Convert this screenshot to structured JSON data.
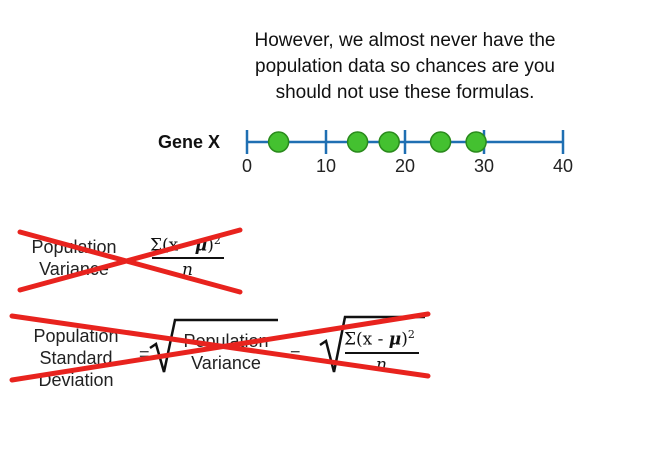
{
  "caption": {
    "line1": "However, we almost never have the",
    "line2": "population data so chances are you",
    "line3": "should not use these formulas."
  },
  "number_line": {
    "label": "Gene X",
    "ticks": [
      "0",
      "10",
      "20",
      "30",
      "40"
    ],
    "tick_values": [
      0,
      10,
      20,
      30,
      40
    ],
    "range": [
      0,
      40
    ],
    "points": [
      4,
      14,
      18,
      24.5,
      29
    ],
    "colors": {
      "axis": "#1f6fb2",
      "point": "#44c130",
      "point_stroke": "#2a8a1c",
      "cross": "#e8231e"
    }
  },
  "formula_variance": {
    "label_line1": "Population",
    "label_line2": "Variance",
    "numerator_sum": "Σ(x - ",
    "numerator_mu": "μ",
    "numerator_close": ")",
    "numerator_exp": "2",
    "denominator": "n",
    "crossed_out": true
  },
  "formula_sd": {
    "label_line1": "Population",
    "label_line2": "Standard",
    "label_line3": "Deviation",
    "equals1": "=",
    "inner_line1": "Population",
    "inner_line2": "Variance",
    "equals2": "=",
    "numerator_sum": "Σ(x - ",
    "numerator_mu": "μ",
    "numerator_close": ")",
    "numerator_exp": "2",
    "denominator": "n",
    "crossed_out": true
  }
}
